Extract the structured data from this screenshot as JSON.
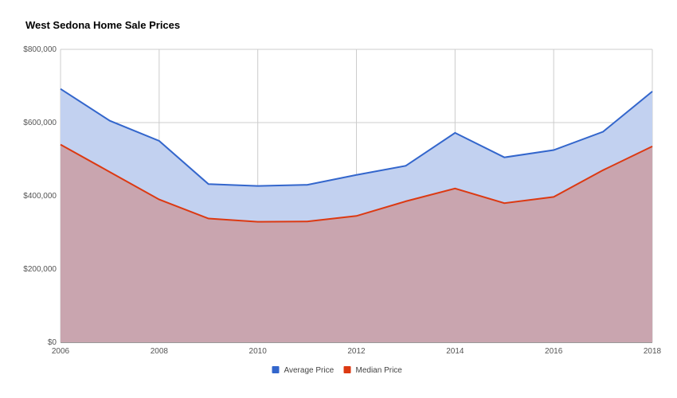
{
  "chart_data": {
    "type": "area",
    "title": "West Sedona Home Sale Prices",
    "xlabel": "",
    "ylabel": "",
    "x": [
      2006,
      2007,
      2008,
      2009,
      2010,
      2011,
      2012,
      2013,
      2014,
      2015,
      2016,
      2017,
      2018
    ],
    "x_ticks": [
      "2006",
      "2008",
      "2010",
      "2012",
      "2014",
      "2016",
      "2018"
    ],
    "y_ticks": [
      "$0",
      "$200,000",
      "$400,000",
      "$600,000",
      "$800,000"
    ],
    "ylim": [
      0,
      800000
    ],
    "xlim": [
      2006,
      2018
    ],
    "grid": true,
    "legend_position": "bottom",
    "series": [
      {
        "name": "Average Price",
        "color": "#3366cc",
        "fill": "#c2d1f0",
        "values": [
          692000,
          605000,
          550000,
          432000,
          427000,
          430000,
          457000,
          482000,
          572000,
          505000,
          525000,
          575000,
          685000
        ]
      },
      {
        "name": "Median Price",
        "color": "#dc3912",
        "fill": "#c9a2ab",
        "values": [
          540000,
          465000,
          390000,
          338000,
          329000,
          330000,
          345000,
          385000,
          420000,
          380000,
          397000,
          470000,
          535000
        ]
      }
    ]
  }
}
